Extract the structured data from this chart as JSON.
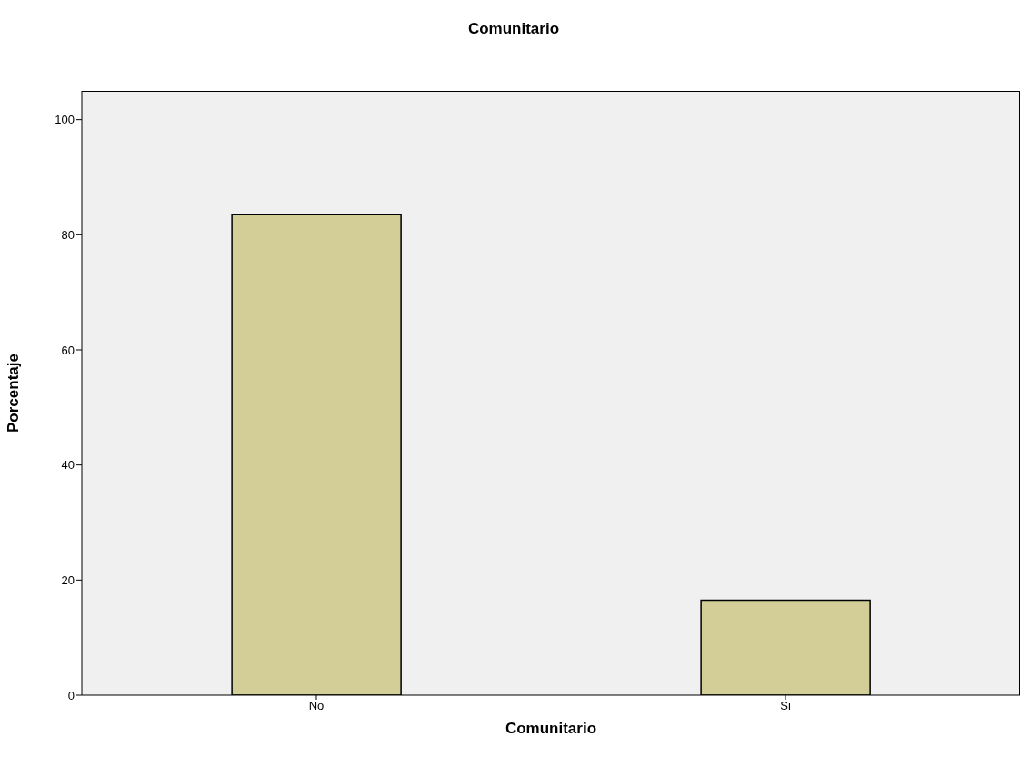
{
  "chart_data": {
    "type": "bar",
    "title": "Comunitario",
    "xlabel": "Comunitario",
    "ylabel": "Porcentaje",
    "categories": [
      "No",
      "Si"
    ],
    "values": [
      83.5,
      16.5
    ],
    "color": "#d3ce97",
    "ylim": [
      0,
      105
    ],
    "yticks": [
      0,
      20,
      40,
      60,
      80,
      100
    ]
  }
}
